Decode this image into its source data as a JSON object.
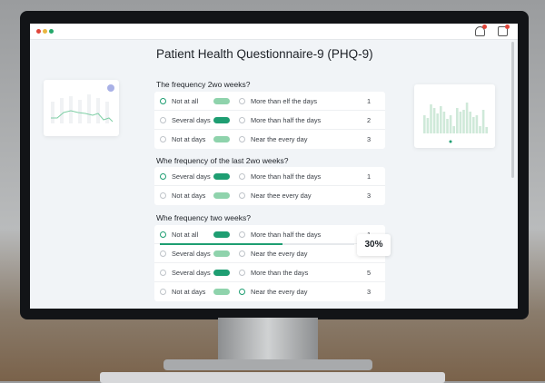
{
  "window": {
    "controls": [
      "close",
      "minimize",
      "maximize"
    ],
    "colors": {
      "close": "#e0453a",
      "minimize": "#e9b640",
      "maximize": "#25a86b"
    },
    "toolbar_icons": [
      "share-notification-icon",
      "inbox-notification-icon"
    ]
  },
  "page": {
    "title": "Patient Health Questionnaire-9 (PHQ-9)"
  },
  "accent": "#1e9e72",
  "questions": [
    {
      "heading": "The frequency 2wo weeks?",
      "rows": [
        {
          "left": "Not at all",
          "left_selected": true,
          "pill": "light",
          "right": "More than elf the days",
          "right_selected": false,
          "value": "1"
        },
        {
          "left": "Several days",
          "left_selected": false,
          "pill": "dark",
          "right": "More than half the days",
          "right_selected": false,
          "value": "2"
        },
        {
          "left": "Not at days",
          "left_selected": false,
          "pill": "light",
          "right": "Near the every day",
          "right_selected": false,
          "value": "3"
        }
      ]
    },
    {
      "heading": "Whe frequency of the last 2wo weeks?",
      "rows": [
        {
          "left": "Several days",
          "left_selected": true,
          "pill": "dark",
          "right": "More than half the days",
          "right_selected": false,
          "value": "1"
        },
        {
          "left": "Not at days",
          "left_selected": false,
          "pill": "light",
          "right": "Near thee every day",
          "right_selected": false,
          "value": "3"
        }
      ]
    },
    {
      "heading": "Whe frequency two weeks?",
      "rows": [
        {
          "left": "Not at all",
          "left_selected": true,
          "pill": "dark",
          "right": "More than half the days",
          "right_selected": false,
          "value": "1"
        },
        {
          "left": "Several days",
          "left_selected": false,
          "pill": "light",
          "right": "Near the every day",
          "right_selected": false,
          "value": "2"
        },
        {
          "left": "Several days",
          "left_selected": false,
          "pill": "dark",
          "right": "More than the days",
          "right_selected": false,
          "value": "5"
        },
        {
          "left": "Not at days",
          "left_selected": false,
          "pill": "light",
          "right": "Near the every day",
          "right_selected": true,
          "value": "3"
        }
      ]
    }
  ],
  "progress": {
    "percent": 30,
    "label": "30%"
  },
  "pill_colors": {
    "light": "#8fd3ac",
    "dark": "#1e9e72"
  }
}
